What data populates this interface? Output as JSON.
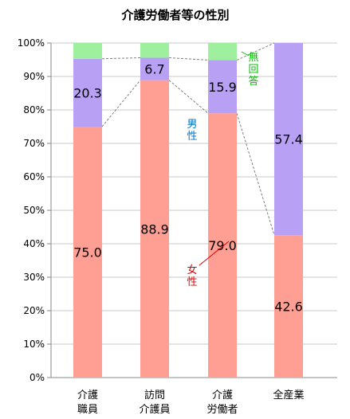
{
  "chart_data": {
    "type": "bar",
    "stacked": true,
    "title": "介護労働者等の性別",
    "categories": [
      [
        "介護",
        "職員"
      ],
      [
        "訪問",
        "介護員"
      ],
      [
        "介護",
        "労働者"
      ],
      [
        "全産業"
      ]
    ],
    "ylim": [
      0,
      100
    ],
    "yticks": [
      "0%",
      "10%",
      "20%",
      "30%",
      "40%",
      "50%",
      "60%",
      "70%",
      "80%",
      "90%",
      "100%"
    ],
    "grid": true,
    "series": [
      {
        "name": "女性",
        "color": "#ff9f94",
        "values": [
          75.0,
          88.9,
          79.0,
          42.6
        ],
        "labels": [
          "75.0",
          "88.9",
          "79.0",
          "42.6"
        ]
      },
      {
        "name": "男性",
        "color": "#b8a1f4",
        "values": [
          20.3,
          6.7,
          15.9,
          57.4
        ],
        "labels": [
          "20.3",
          "6.7",
          "15.9",
          "57.4"
        ]
      },
      {
        "name": "無回答",
        "color": "#9ef09e",
        "values": [
          4.7,
          4.4,
          5.1,
          0.0
        ],
        "labels": [
          "",
          "",
          "",
          ""
        ]
      }
    ],
    "annotations": [
      {
        "text": "無回答",
        "color": "#00c000"
      },
      {
        "text": "男性",
        "color": "#0070c0"
      },
      {
        "text": "女性",
        "color": "#e00000"
      }
    ]
  }
}
